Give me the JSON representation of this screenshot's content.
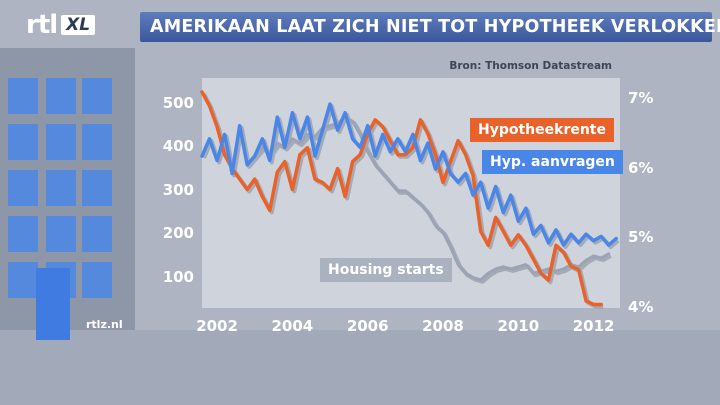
{
  "logo": {
    "rtl": "rtl",
    "xl": "XL"
  },
  "header": {
    "title": "AMERIKAAN LAAT ZICH NIET TOT HYPOTHEEK VERLOKKEN"
  },
  "source": "Bron: Thomson Datastream",
  "watermark": "rtlz.nl",
  "colors": {
    "background": "#aeb4c2",
    "plot_bg": "#cfd3dc",
    "title_bar": "#4a67ab",
    "hypotheekrente": "#e8622a",
    "aanvragen": "#4a86e8",
    "housing": "#9aa4b4"
  },
  "chart_data": {
    "type": "line",
    "xlim": [
      2001.6,
      2012.7
    ],
    "x_ticks": [
      2002,
      2004,
      2006,
      2008,
      2010,
      2012
    ],
    "left_axis": {
      "ylim": [
        30,
        560
      ],
      "ticks": [
        100,
        200,
        300,
        400,
        500
      ]
    },
    "right_axis": {
      "ylim": [
        4.0,
        7.3
      ],
      "ticks": [
        4,
        5,
        6,
        7
      ],
      "tick_labels": [
        "4%",
        "5%",
        "6%",
        "7%"
      ]
    },
    "series": [
      {
        "name": "Hypotheekrente",
        "axis": "right",
        "color": "#e8622a",
        "points": [
          [
            2001.6,
            7.1
          ],
          [
            2001.8,
            6.9
          ],
          [
            2002.0,
            6.6
          ],
          [
            2002.2,
            6.2
          ],
          [
            2002.4,
            6.0
          ],
          [
            2002.6,
            5.85
          ],
          [
            2002.8,
            5.7
          ],
          [
            2003.0,
            5.85
          ],
          [
            2003.2,
            5.6
          ],
          [
            2003.4,
            5.4
          ],
          [
            2003.6,
            5.95
          ],
          [
            2003.8,
            6.1
          ],
          [
            2004.0,
            5.7
          ],
          [
            2004.2,
            6.2
          ],
          [
            2004.4,
            6.3
          ],
          [
            2004.6,
            5.85
          ],
          [
            2004.8,
            5.8
          ],
          [
            2005.0,
            5.7
          ],
          [
            2005.2,
            6.0
          ],
          [
            2005.4,
            5.6
          ],
          [
            2005.6,
            6.1
          ],
          [
            2005.8,
            6.2
          ],
          [
            2006.0,
            6.5
          ],
          [
            2006.2,
            6.7
          ],
          [
            2006.4,
            6.6
          ],
          [
            2006.6,
            6.4
          ],
          [
            2006.8,
            6.2
          ],
          [
            2007.0,
            6.2
          ],
          [
            2007.2,
            6.3
          ],
          [
            2007.4,
            6.7
          ],
          [
            2007.6,
            6.5
          ],
          [
            2007.8,
            6.2
          ],
          [
            2008.0,
            5.8
          ],
          [
            2008.2,
            6.1
          ],
          [
            2008.4,
            6.4
          ],
          [
            2008.6,
            6.2
          ],
          [
            2008.8,
            5.9
          ],
          [
            2009.0,
            5.1
          ],
          [
            2009.2,
            4.9
          ],
          [
            2009.4,
            5.3
          ],
          [
            2009.6,
            5.1
          ],
          [
            2009.8,
            4.9
          ],
          [
            2010.0,
            5.05
          ],
          [
            2010.2,
            4.9
          ],
          [
            2010.4,
            4.7
          ],
          [
            2010.6,
            4.5
          ],
          [
            2010.8,
            4.4
          ],
          [
            2011.0,
            4.9
          ],
          [
            2011.2,
            4.8
          ],
          [
            2011.4,
            4.6
          ],
          [
            2011.6,
            4.55
          ],
          [
            2011.8,
            4.1
          ],
          [
            2012.0,
            4.05
          ],
          [
            2012.2,
            4.05
          ]
        ]
      },
      {
        "name": "Hyp. aanvragen",
        "axis": "left",
        "color": "#4a86e8",
        "points": [
          [
            2001.6,
            380
          ],
          [
            2001.8,
            420
          ],
          [
            2002.0,
            370
          ],
          [
            2002.2,
            430
          ],
          [
            2002.4,
            340
          ],
          [
            2002.6,
            450
          ],
          [
            2002.8,
            360
          ],
          [
            2003.0,
            380
          ],
          [
            2003.2,
            420
          ],
          [
            2003.4,
            370
          ],
          [
            2003.6,
            470
          ],
          [
            2003.8,
            400
          ],
          [
            2004.0,
            480
          ],
          [
            2004.2,
            420
          ],
          [
            2004.4,
            470
          ],
          [
            2004.6,
            380
          ],
          [
            2004.8,
            440
          ],
          [
            2005.0,
            500
          ],
          [
            2005.2,
            440
          ],
          [
            2005.4,
            480
          ],
          [
            2005.6,
            420
          ],
          [
            2005.8,
            400
          ],
          [
            2006.0,
            450
          ],
          [
            2006.2,
            380
          ],
          [
            2006.4,
            430
          ],
          [
            2006.6,
            390
          ],
          [
            2006.8,
            420
          ],
          [
            2007.0,
            390
          ],
          [
            2007.2,
            430
          ],
          [
            2007.4,
            370
          ],
          [
            2007.6,
            410
          ],
          [
            2007.8,
            350
          ],
          [
            2008.0,
            390
          ],
          [
            2008.2,
            340
          ],
          [
            2008.4,
            320
          ],
          [
            2008.6,
            340
          ],
          [
            2008.8,
            290
          ],
          [
            2009.0,
            320
          ],
          [
            2009.2,
            260
          ],
          [
            2009.4,
            310
          ],
          [
            2009.6,
            250
          ],
          [
            2009.8,
            290
          ],
          [
            2010.0,
            230
          ],
          [
            2010.2,
            260
          ],
          [
            2010.4,
            200
          ],
          [
            2010.6,
            220
          ],
          [
            2010.8,
            180
          ],
          [
            2011.0,
            210
          ],
          [
            2011.2,
            175
          ],
          [
            2011.4,
            200
          ],
          [
            2011.6,
            180
          ],
          [
            2011.8,
            200
          ],
          [
            2012.0,
            185
          ],
          [
            2012.2,
            195
          ],
          [
            2012.4,
            175
          ],
          [
            2012.6,
            190
          ]
        ]
      },
      {
        "name": "Housing starts",
        "axis": "left",
        "color": "#9aa4b4",
        "points": [
          [
            2003.0,
            380
          ],
          [
            2003.2,
            400
          ],
          [
            2003.4,
            385
          ],
          [
            2003.6,
            410
          ],
          [
            2003.8,
            400
          ],
          [
            2004.0,
            420
          ],
          [
            2004.2,
            410
          ],
          [
            2004.4,
            430
          ],
          [
            2004.6,
            425
          ],
          [
            2004.8,
            445
          ],
          [
            2005.0,
            450
          ],
          [
            2005.2,
            455
          ],
          [
            2005.4,
            470
          ],
          [
            2005.6,
            460
          ],
          [
            2005.8,
            430
          ],
          [
            2006.0,
            390
          ],
          [
            2006.2,
            360
          ],
          [
            2006.4,
            340
          ],
          [
            2006.6,
            320
          ],
          [
            2006.8,
            300
          ],
          [
            2007.0,
            300
          ],
          [
            2007.2,
            285
          ],
          [
            2007.4,
            270
          ],
          [
            2007.6,
            250
          ],
          [
            2007.8,
            220
          ],
          [
            2008.0,
            205
          ],
          [
            2008.2,
            170
          ],
          [
            2008.4,
            130
          ],
          [
            2008.6,
            110
          ],
          [
            2008.8,
            100
          ],
          [
            2009.0,
            95
          ],
          [
            2009.2,
            110
          ],
          [
            2009.4,
            120
          ],
          [
            2009.6,
            125
          ],
          [
            2009.8,
            120
          ],
          [
            2010.0,
            125
          ],
          [
            2010.2,
            130
          ],
          [
            2010.4,
            110
          ],
          [
            2010.6,
            115
          ],
          [
            2010.8,
            120
          ],
          [
            2011.0,
            115
          ],
          [
            2011.2,
            120
          ],
          [
            2011.4,
            130
          ],
          [
            2011.6,
            125
          ],
          [
            2011.8,
            140
          ],
          [
            2012.0,
            150
          ],
          [
            2012.2,
            145
          ],
          [
            2012.4,
            155
          ]
        ]
      }
    ],
    "labels": [
      {
        "text": "Hypotheekrente",
        "series": "Hypotheekrente"
      },
      {
        "text": "Hyp. aanvragen",
        "series": "Hyp. aanvragen"
      },
      {
        "text": "Housing starts",
        "series": "Housing starts"
      }
    ]
  }
}
